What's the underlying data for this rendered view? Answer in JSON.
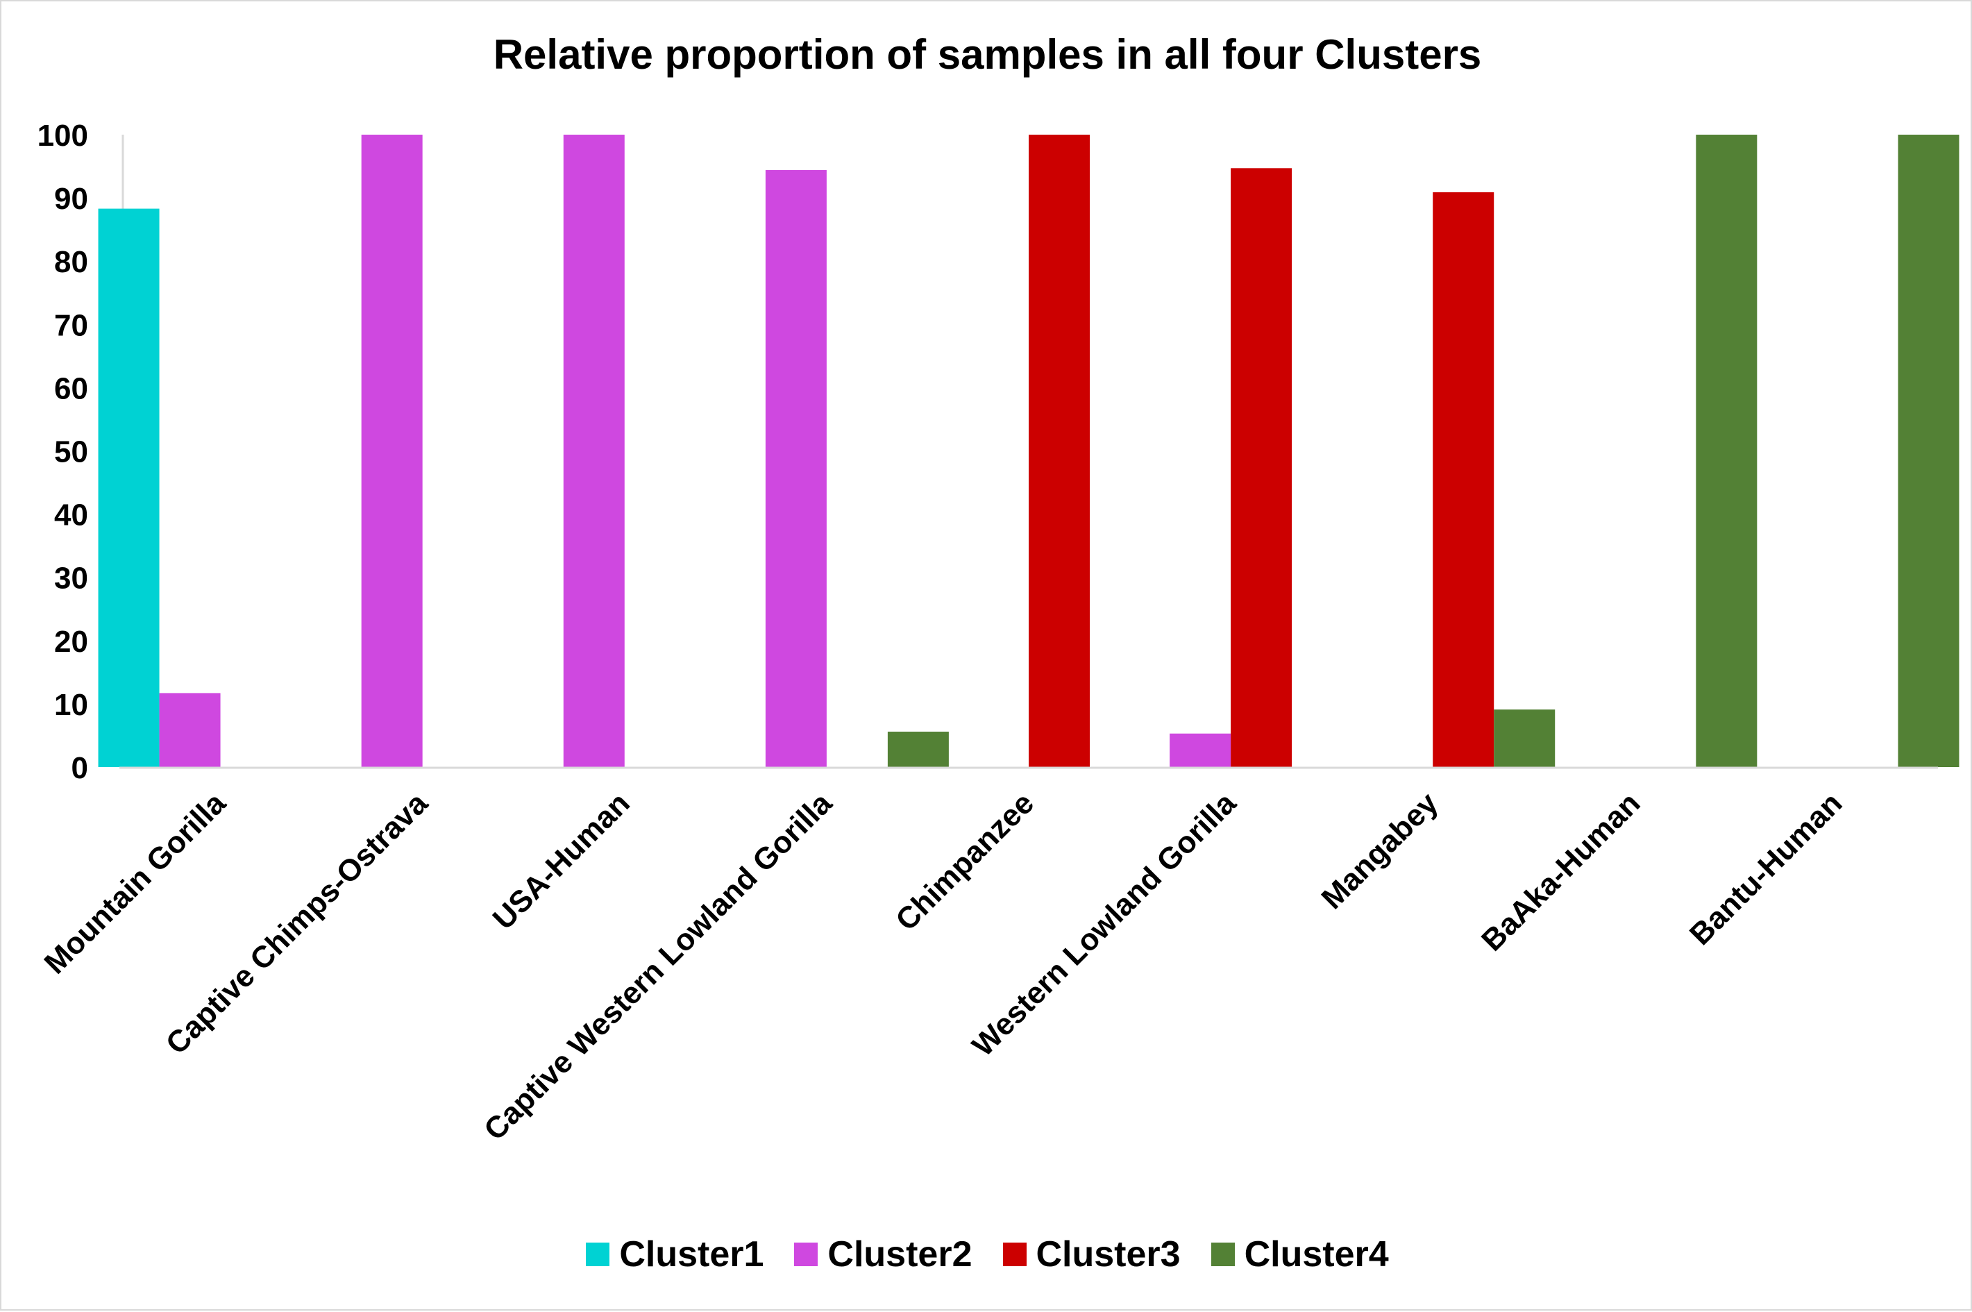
{
  "chart_data": {
    "type": "bar",
    "title": "Relative proportion of samples in all four Clusters",
    "xlabel": "",
    "ylabel": "",
    "ylim": [
      0,
      100
    ],
    "yticks": [
      0,
      10,
      20,
      30,
      40,
      50,
      60,
      70,
      80,
      90,
      100
    ],
    "grid": false,
    "legend_position": "bottom",
    "categories": [
      "Mountain Gorilla",
      "Captive Chimps-Ostrava",
      "USA-Human",
      "Captive Western Lowland Gorilla",
      "Chimpanzee",
      "Western Lowland Gorilla",
      "Mangabey",
      "BaAka-Human",
      "Bantu-Human"
    ],
    "series": [
      {
        "name": "Cluster1",
        "color": "#00d2d3",
        "values": [
          88.3,
          0,
          0,
          0,
          0,
          0,
          0,
          0,
          0
        ]
      },
      {
        "name": "Cluster2",
        "color": "#cf48e0",
        "values": [
          11.7,
          100,
          100,
          94.4,
          0,
          5.3,
          0,
          0,
          0
        ]
      },
      {
        "name": "Cluster3",
        "color": "#cc0000",
        "values": [
          0,
          0,
          0,
          0,
          100,
          94.7,
          90.9,
          0,
          0
        ]
      },
      {
        "name": "Cluster4",
        "color": "#538135",
        "values": [
          0,
          0,
          0,
          5.6,
          0,
          0,
          9.1,
          100,
          100
        ]
      }
    ]
  }
}
